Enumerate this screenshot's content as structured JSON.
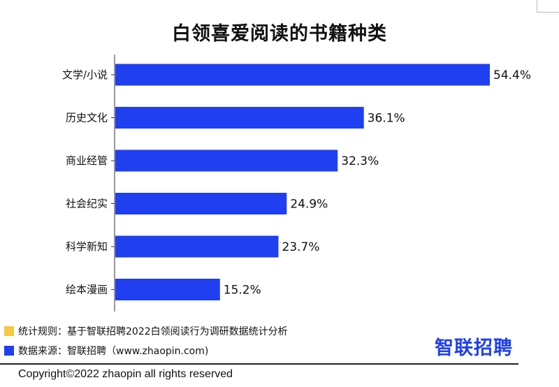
{
  "chart_data": {
    "type": "bar",
    "orientation": "horizontal",
    "title": "白领喜爱阅读的书籍种类",
    "categories": [
      "文学/小说",
      "历史文化",
      "商业经管",
      "社会纪实",
      "科学新知",
      "绘本漫画"
    ],
    "values": [
      54.4,
      36.1,
      32.3,
      24.9,
      23.7,
      15.2
    ],
    "value_labels": [
      "54.4%",
      "36.1%",
      "32.3%",
      "24.9%",
      "23.7%",
      "15.2%"
    ],
    "unit": "%",
    "bar_color": "#1f3ff0",
    "grid": false,
    "legend": "none"
  },
  "notes": {
    "rule_text": "统计规则：基于智联招聘2022白领阅读行为调研数据统计分析",
    "rule_color": "#f5c842",
    "source_text": "数据来源：智联招聘（www.zhaopin.com)",
    "source_color": "#1f3ff0"
  },
  "logo_text": "智联招聘",
  "copyright": "Copyright©2022 zhaopin all rights reserved"
}
